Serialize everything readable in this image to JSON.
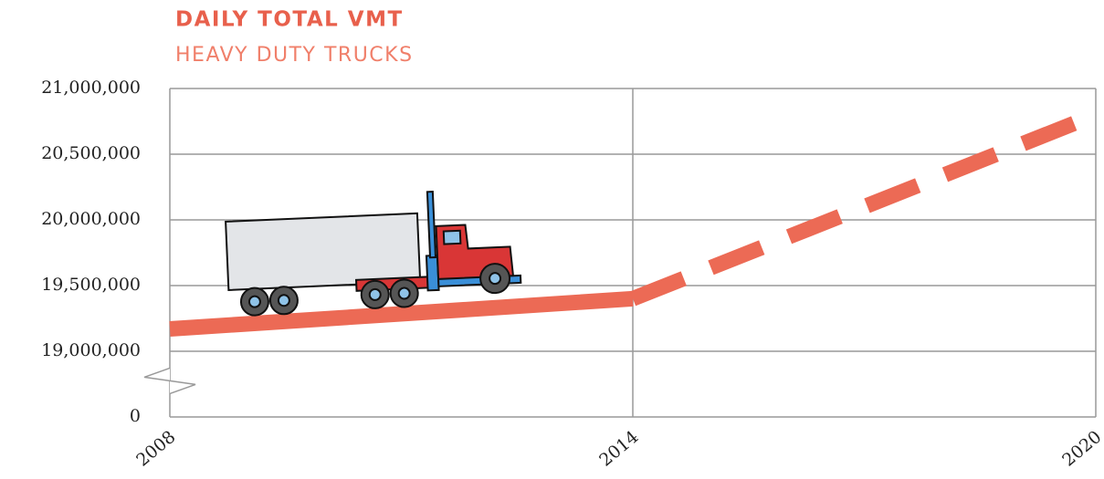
{
  "chart_data": {
    "type": "line",
    "title": "DAILY TOTAL VMT",
    "subtitle": "HEAVY DUTY TRUCKS",
    "x": [
      2008,
      2014,
      2020
    ],
    "series": [
      {
        "color": "#ec6a55",
        "line_style": "solid",
        "values": [
          19170000,
          19400000,
          null
        ]
      },
      {
        "color": "#ec6a55",
        "line_style": "dashed",
        "values": [
          null,
          19400000,
          20800000
        ]
      }
    ],
    "xlim": [
      2008,
      2020
    ],
    "xticks": [
      2008,
      2014,
      2020
    ],
    "ylim": [
      0,
      21000000
    ],
    "yticks": [
      0,
      {
        "value": 19000000,
        "label": "19,000,000"
      },
      {
        "value": 19500000,
        "label": "19,500,000"
      },
      {
        "value": 20000000,
        "label": "20,000,000"
      },
      {
        "value": 20500000,
        "label": "20,500,000"
      },
      {
        "value": 21000000,
        "label": "21,000,000"
      }
    ],
    "y_axis_break": true,
    "grid": true
  }
}
